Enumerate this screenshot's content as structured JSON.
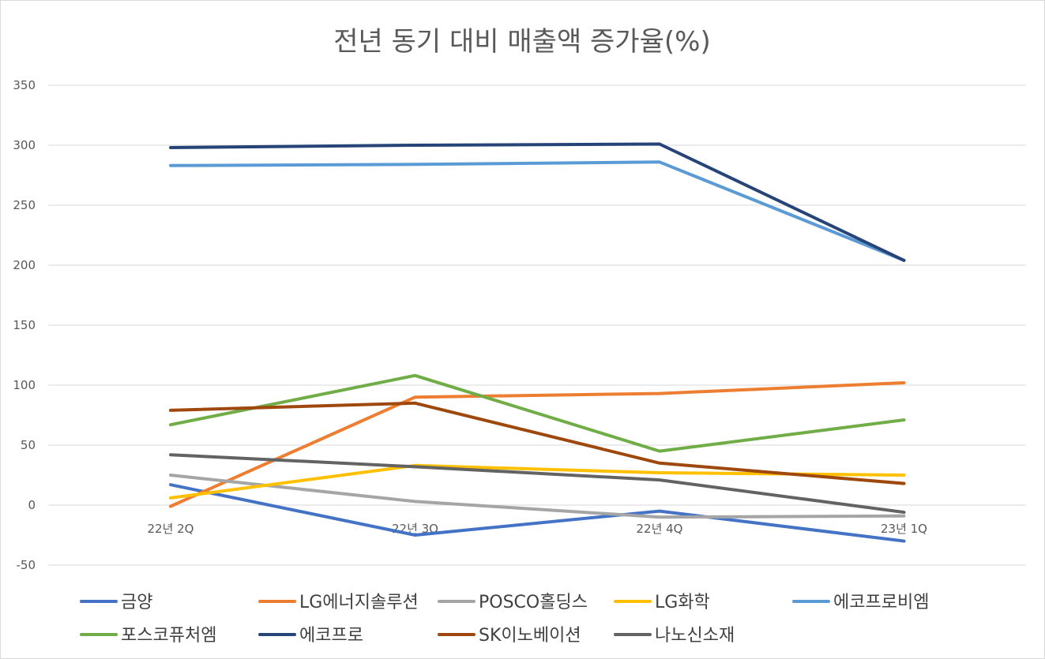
{
  "chart_data": {
    "type": "line",
    "title": "전년 동기 대비 매출액 증가율(%)",
    "xlabel": "",
    "ylabel": "",
    "categories": [
      "22년 2Q",
      "22년 3Q",
      "22년 4Q",
      "23년 1Q"
    ],
    "ylim": [
      -50,
      350
    ],
    "yticks": [
      350,
      300,
      250,
      200,
      150,
      100,
      50,
      0,
      -50
    ],
    "grid": true,
    "legend_position": "bottom",
    "series": [
      {
        "name": "금양",
        "color": "#4472C4",
        "values": [
          17,
          -25,
          -5,
          -30
        ]
      },
      {
        "name": "LG에너지솔루션",
        "color": "#ED7D31",
        "values": [
          -1,
          90,
          93,
          102
        ]
      },
      {
        "name": "POSCO홀딩스",
        "color": "#A5A5A5",
        "values": [
          25,
          3,
          -10,
          -9
        ]
      },
      {
        "name": "LG화학",
        "color": "#FFC000",
        "values": [
          6,
          33,
          27,
          25
        ]
      },
      {
        "name": "에코프로비엠",
        "color": "#5B9BD5",
        "values": [
          283,
          284,
          286,
          204
        ]
      },
      {
        "name": "포스코퓨처엠",
        "color": "#70AD47",
        "values": [
          67,
          108,
          45,
          71
        ]
      },
      {
        "name": "에코프로",
        "color": "#264478",
        "values": [
          298,
          300,
          301,
          204
        ]
      },
      {
        "name": "SK이노베이션",
        "color": "#9E480E",
        "values": [
          79,
          85,
          35,
          18
        ]
      },
      {
        "name": "나노신소재",
        "color": "#636363",
        "values": [
          42,
          32,
          21,
          -6
        ]
      }
    ]
  }
}
